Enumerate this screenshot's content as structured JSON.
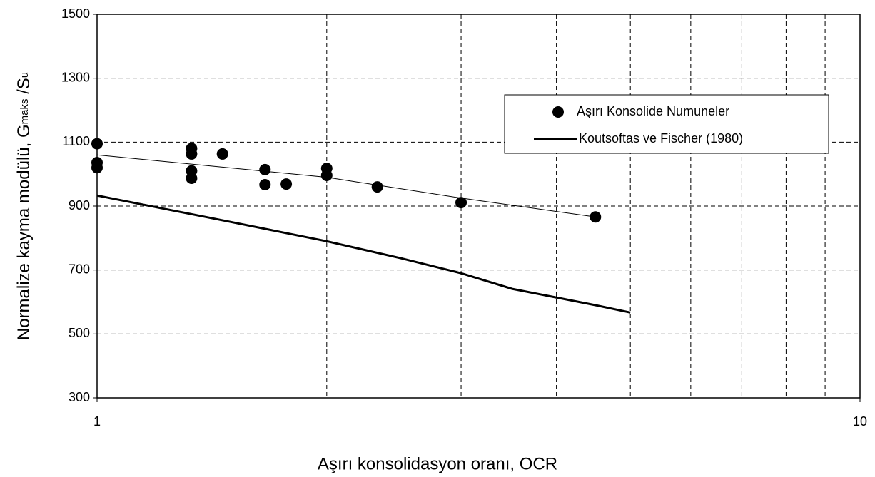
{
  "chart_data": {
    "type": "scatter",
    "xlabel": "Aşırı konsolidasyon oranı, OCR",
    "ylabel": [
      {
        "text": "Normalize kayma modülü, G"
      },
      {
        "text": "maks",
        "sub": true
      },
      {
        "text": " /S"
      },
      {
        "text": "u",
        "sub": true
      }
    ],
    "xlog": true,
    "xlim": [
      1,
      10
    ],
    "xticks": [
      1,
      10
    ],
    "xminor_grid": true,
    "ylim": [
      300,
      1500
    ],
    "yticks": [
      300,
      500,
      700,
      900,
      1100,
      1300,
      1500
    ],
    "grid": true,
    "legend": "upper right",
    "series": [
      {
        "name": "Aşırı Konsolide Numuneler",
        "type": "scatter",
        "color": "#000000",
        "x": [
          1,
          1,
          1,
          1.33,
          1.33,
          1.33,
          1.33,
          1.46,
          1.66,
          1.66,
          1.77,
          2,
          2,
          2.33,
          3,
          4.5
        ],
        "values": [
          1095,
          1036,
          1020,
          1080,
          1063,
          1010,
          987,
          1063,
          1014,
          967,
          969,
          1018,
          996,
          960,
          911,
          866
        ]
      },
      {
        "type": "line",
        "color": "#000000",
        "width": 1,
        "x": [
          1,
          2,
          3,
          4.5
        ],
        "values": [
          1060,
          990,
          925,
          866
        ]
      },
      {
        "name": "Koutsoftas ve Fischer (1980)",
        "type": "line",
        "color": "#000000",
        "width": 3,
        "x": [
          1,
          1.5,
          2,
          2.5,
          3,
          3.5,
          4,
          4.5,
          5
        ],
        "values": [
          933,
          850,
          790,
          737,
          690,
          641,
          614,
          590,
          567
        ]
      }
    ]
  }
}
